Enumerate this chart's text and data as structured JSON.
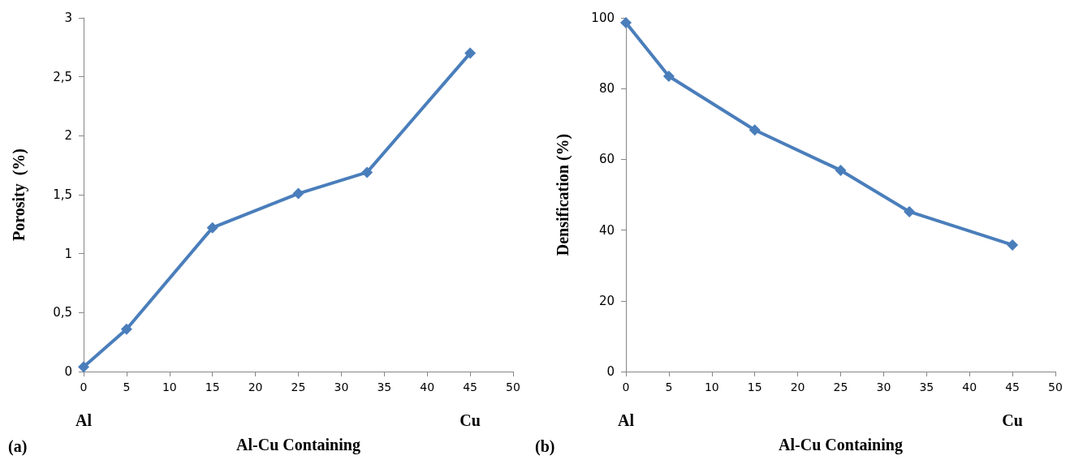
{
  "chart_data": [
    {
      "type": "line",
      "xlabel": "Al-Cu Containing",
      "ylabel": "Porosity  (%)",
      "annotations": [
        "(a)",
        "Al",
        "Cu"
      ],
      "x": [
        0,
        5,
        15,
        25,
        33,
        45
      ],
      "series": [
        {
          "color": "#4a7ebb",
          "values": [
            0.04,
            0.36,
            1.22,
            1.51,
            1.69,
            2.7
          ]
        }
      ],
      "xlim": [
        0,
        50
      ],
      "xticks": [
        0,
        5,
        10,
        15,
        20,
        25,
        30,
        35,
        40,
        45,
        50
      ],
      "ylim": [
        0,
        3
      ],
      "yticks": [
        0,
        {
          "value": 0.5,
          "label": "0,5"
        },
        1,
        {
          "value": 1.5,
          "label": "1,5"
        },
        2,
        {
          "value": 2.5,
          "label": "2,5"
        },
        3
      ],
      "grid": false,
      "marker": "diamond",
      "line_style": "solid"
    },
    {
      "type": "line",
      "xlabel": "Al-Cu Containing",
      "ylabel": "Densification (%)",
      "annotations": [
        "(b)",
        "Al",
        "Cu"
      ],
      "x": [
        0,
        5,
        15,
        25,
        33,
        45
      ],
      "series": [
        {
          "color": "#4a7ebb",
          "values": [
            98.6,
            83.5,
            68.3,
            56.9,
            45.2,
            35.8
          ]
        }
      ],
      "xlim": [
        0,
        50
      ],
      "xticks": [
        0,
        5,
        10,
        15,
        20,
        25,
        30,
        35,
        40,
        45,
        50
      ],
      "ylim": [
        0,
        100
      ],
      "yticks": [
        0,
        20,
        40,
        60,
        80,
        100
      ],
      "grid": false,
      "marker": "diamond",
      "line_style": "solid"
    }
  ]
}
